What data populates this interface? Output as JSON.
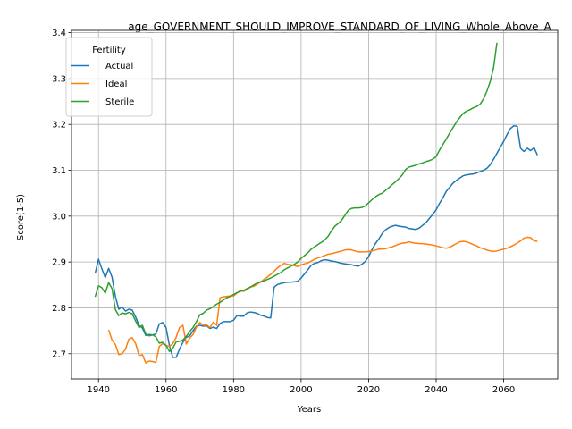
{
  "chart_data": {
    "type": "line",
    "title": "age_GOVERNMENT_SHOULD_IMPROVE_STANDARD_OF_LIVING_Whole_Above_A",
    "xlabel": "Years",
    "ylabel": "Score(1-5)",
    "xlim": [
      1932,
      2076
    ],
    "ylim": [
      2.645,
      3.405
    ],
    "xticks": [
      1940,
      1960,
      1980,
      2000,
      2020,
      2040,
      2060
    ],
    "yticks": [
      2.7,
      2.8,
      2.9,
      3.0,
      3.1,
      3.2,
      3.3,
      3.4
    ],
    "grid": true,
    "legend": {
      "title": "Fertility",
      "position": "upper-left"
    },
    "series": [
      {
        "name": "Actual",
        "color": "#1f77b4",
        "x": [
          1939,
          1940,
          1941,
          1942,
          1943,
          1944,
          1945,
          1946,
          1947,
          1948,
          1949,
          1950,
          1951,
          1952,
          1953,
          1954,
          1955,
          1956,
          1957,
          1958,
          1959,
          1960,
          1961,
          1962,
          1963,
          1964,
          1965,
          1966,
          1967,
          1968,
          1969,
          1970,
          1971,
          1972,
          1973,
          1974,
          1975,
          1976,
          1977,
          1978,
          1979,
          1980,
          1981,
          1982,
          1983,
          1984,
          1985,
          1986,
          1987,
          1988,
          1989,
          1990,
          1991,
          1992,
          1993,
          1994,
          1995,
          1996,
          1997,
          1998,
          1999,
          2000,
          2001,
          2002,
          2003,
          2004,
          2005,
          2006,
          2007,
          2008,
          2009,
          2010,
          2011,
          2012,
          2013,
          2014,
          2015,
          2016,
          2017,
          2018,
          2019,
          2020,
          2021,
          2022,
          2023,
          2024,
          2025,
          2026,
          2027,
          2028,
          2029,
          2030,
          2031,
          2032,
          2033,
          2034,
          2035,
          2036,
          2037,
          2038,
          2039,
          2040,
          2041,
          2042,
          2043,
          2044,
          2045,
          2046,
          2047,
          2048,
          2049,
          2050,
          2051,
          2052,
          2053,
          2054,
          2055,
          2056,
          2057,
          2058,
          2059,
          2060,
          2061,
          2062,
          2063,
          2064,
          2065,
          2066,
          2067,
          2068,
          2069,
          2070
        ],
        "values": [
          2.875,
          2.906,
          2.885,
          2.866,
          2.886,
          2.867,
          2.825,
          2.797,
          2.802,
          2.793,
          2.797,
          2.795,
          2.78,
          2.762,
          2.756,
          2.74,
          2.742,
          2.741,
          2.743,
          2.765,
          2.768,
          2.757,
          2.718,
          2.692,
          2.692,
          2.71,
          2.725,
          2.736,
          2.739,
          2.75,
          2.76,
          2.762,
          2.76,
          2.761,
          2.755,
          2.758,
          2.755,
          2.766,
          2.77,
          2.77,
          2.77,
          2.773,
          2.783,
          2.782,
          2.782,
          2.789,
          2.791,
          2.79,
          2.788,
          2.784,
          2.782,
          2.779,
          2.778,
          2.845,
          2.851,
          2.853,
          2.855,
          2.856,
          2.856,
          2.857,
          2.858,
          2.865,
          2.874,
          2.883,
          2.893,
          2.897,
          2.899,
          2.903,
          2.905,
          2.904,
          2.902,
          2.901,
          2.899,
          2.897,
          2.896,
          2.895,
          2.894,
          2.892,
          2.891,
          2.895,
          2.901,
          2.912,
          2.927,
          2.94,
          2.95,
          2.962,
          2.97,
          2.975,
          2.978,
          2.98,
          2.978,
          2.977,
          2.976,
          2.973,
          2.972,
          2.971,
          2.974,
          2.98,
          2.986,
          2.995,
          3.004,
          3.014,
          3.028,
          3.04,
          3.054,
          3.063,
          3.072,
          3.078,
          3.083,
          3.088,
          3.09,
          3.091,
          3.092,
          3.094,
          3.097,
          3.1,
          3.104,
          3.112,
          3.124,
          3.137,
          3.15,
          3.163,
          3.178,
          3.191,
          3.197,
          3.196,
          3.148,
          3.141,
          3.148,
          3.143,
          3.149,
          3.133
        ]
      },
      {
        "name": "Ideal",
        "color": "#ff7f0e",
        "x": [
          1943,
          1944,
          1945,
          1946,
          1947,
          1948,
          1949,
          1950,
          1951,
          1952,
          1953,
          1954,
          1955,
          1956,
          1957,
          1958,
          1959,
          1960,
          1961,
          1962,
          1963,
          1964,
          1965,
          1966,
          1967,
          1968,
          1969,
          1970,
          1971,
          1972,
          1973,
          1974,
          1975,
          1976,
          1977,
          1978,
          1979,
          1980,
          1981,
          1982,
          1983,
          1984,
          1985,
          1986,
          1987,
          1988,
          1989,
          1990,
          1991,
          1992,
          1993,
          1994,
          1995,
          1996,
          1997,
          1998,
          1999,
          2000,
          2001,
          2002,
          2003,
          2004,
          2005,
          2006,
          2007,
          2008,
          2009,
          2010,
          2011,
          2012,
          2013,
          2014,
          2015,
          2016,
          2017,
          2018,
          2019,
          2020,
          2021,
          2022,
          2023,
          2024,
          2025,
          2026,
          2027,
          2028,
          2029,
          2030,
          2031,
          2032,
          2033,
          2034,
          2035,
          2036,
          2037,
          2038,
          2039,
          2040,
          2041,
          2042,
          2043,
          2044,
          2045,
          2046,
          2047,
          2048,
          2049,
          2050,
          2051,
          2052,
          2053,
          2054,
          2055,
          2056,
          2057,
          2058,
          2059,
          2060,
          2061,
          2062,
          2063,
          2064,
          2065,
          2066,
          2067,
          2068,
          2069,
          2070
        ],
        "values": [
          2.752,
          2.73,
          2.72,
          2.698,
          2.7,
          2.71,
          2.732,
          2.735,
          2.722,
          2.696,
          2.698,
          2.68,
          2.684,
          2.683,
          2.681,
          2.716,
          2.722,
          2.718,
          2.716,
          2.722,
          2.736,
          2.757,
          2.762,
          2.721,
          2.734,
          2.742,
          2.758,
          2.768,
          2.762,
          2.763,
          2.757,
          2.769,
          2.762,
          2.822,
          2.824,
          2.825,
          2.826,
          2.826,
          2.832,
          2.838,
          2.836,
          2.84,
          2.846,
          2.847,
          2.852,
          2.856,
          2.862,
          2.867,
          2.873,
          2.88,
          2.887,
          2.893,
          2.897,
          2.895,
          2.894,
          2.892,
          2.89,
          2.894,
          2.896,
          2.898,
          2.902,
          2.906,
          2.909,
          2.911,
          2.914,
          2.917,
          2.918,
          2.92,
          2.922,
          2.924,
          2.926,
          2.927,
          2.926,
          2.924,
          2.922,
          2.922,
          2.922,
          2.923,
          2.924,
          2.926,
          2.928,
          2.928,
          2.929,
          2.931,
          2.933,
          2.936,
          2.939,
          2.941,
          2.942,
          2.944,
          2.942,
          2.941,
          2.94,
          2.94,
          2.939,
          2.938,
          2.937,
          2.935,
          2.933,
          2.931,
          2.93,
          2.932,
          2.936,
          2.94,
          2.944,
          2.945,
          2.944,
          2.941,
          2.938,
          2.935,
          2.931,
          2.929,
          2.926,
          2.924,
          2.923,
          2.924,
          2.926,
          2.928,
          2.93,
          2.933,
          2.937,
          2.941,
          2.946,
          2.952,
          2.954,
          2.953,
          2.946,
          2.945
        ]
      },
      {
        "name": "Sterile",
        "color": "#2ca02c",
        "x": [
          1939,
          1940,
          1941,
          1942,
          1943,
          1944,
          1945,
          1946,
          1947,
          1948,
          1949,
          1950,
          1951,
          1952,
          1953,
          1954,
          1955,
          1956,
          1957,
          1958,
          1959,
          1960,
          1961,
          1962,
          1963,
          1964,
          1965,
          1966,
          1967,
          1968,
          1969,
          1970,
          1971,
          1972,
          1973,
          1974,
          1975,
          1976,
          1977,
          1978,
          1979,
          1980,
          1981,
          1982,
          1983,
          1984,
          1985,
          1986,
          1987,
          1988,
          1989,
          1990,
          1991,
          1992,
          1993,
          1994,
          1995,
          1996,
          1997,
          1998,
          1999,
          2000,
          2001,
          2002,
          2003,
          2004,
          2005,
          2006,
          2007,
          2008,
          2009,
          2010,
          2011,
          2012,
          2013,
          2014,
          2015,
          2016,
          2017,
          2018,
          2019,
          2020,
          2021,
          2022,
          2023,
          2024,
          2025,
          2026,
          2027,
          2028,
          2029,
          2030,
          2031,
          2032,
          2033,
          2034,
          2035,
          2036,
          2037,
          2038,
          2039,
          2040,
          2041,
          2042,
          2043,
          2044,
          2045,
          2046,
          2047,
          2048,
          2049,
          2050,
          2051,
          2052,
          2053,
          2054,
          2055,
          2056,
          2057,
          2058
        ],
        "values": [
          2.824,
          2.848,
          2.844,
          2.832,
          2.855,
          2.842,
          2.796,
          2.783,
          2.789,
          2.787,
          2.79,
          2.787,
          2.771,
          2.757,
          2.762,
          2.743,
          2.739,
          2.741,
          2.737,
          2.723,
          2.725,
          2.718,
          2.705,
          2.712,
          2.726,
          2.727,
          2.73,
          2.738,
          2.748,
          2.757,
          2.77,
          2.785,
          2.788,
          2.795,
          2.798,
          2.803,
          2.808,
          2.812,
          2.817,
          2.822,
          2.825,
          2.829,
          2.833,
          2.836,
          2.838,
          2.842,
          2.845,
          2.85,
          2.854,
          2.857,
          2.859,
          2.862,
          2.865,
          2.869,
          2.873,
          2.877,
          2.883,
          2.887,
          2.891,
          2.895,
          2.9,
          2.908,
          2.914,
          2.92,
          2.928,
          2.933,
          2.938,
          2.943,
          2.948,
          2.956,
          2.968,
          2.978,
          2.984,
          2.991,
          3.002,
          3.013,
          3.017,
          3.018,
          3.018,
          3.019,
          3.022,
          3.029,
          3.036,
          3.042,
          3.047,
          3.05,
          3.056,
          3.062,
          3.069,
          3.075,
          3.082,
          3.09,
          3.102,
          3.107,
          3.109,
          3.111,
          3.114,
          3.116,
          3.119,
          3.121,
          3.124,
          3.13,
          3.144,
          3.156,
          3.168,
          3.181,
          3.193,
          3.205,
          3.215,
          3.224,
          3.229,
          3.232,
          3.236,
          3.239,
          3.244,
          3.255,
          3.272,
          3.293,
          3.323,
          3.378
        ]
      }
    ]
  }
}
